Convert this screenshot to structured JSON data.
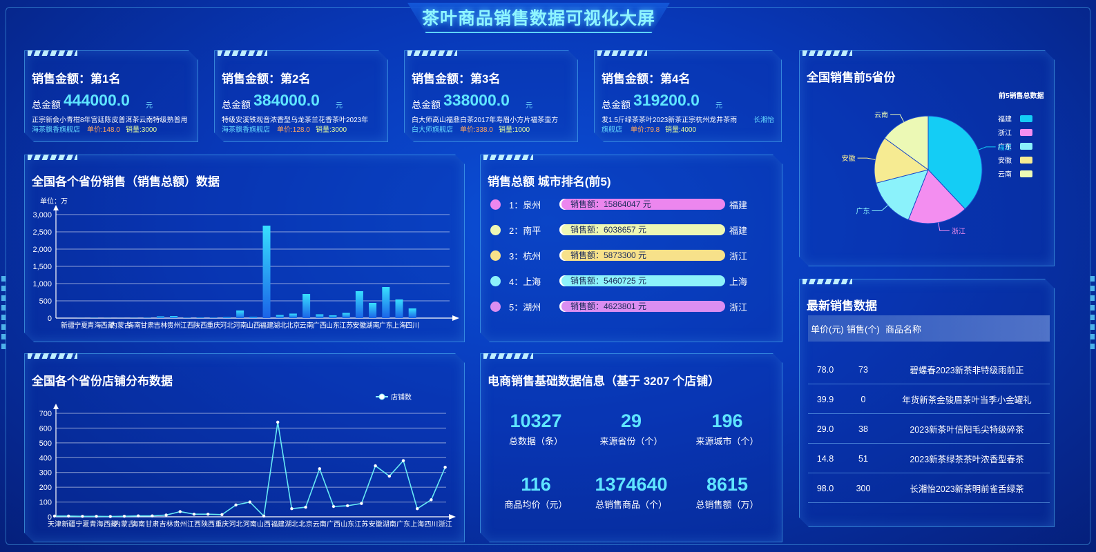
{
  "header": {
    "title": "茶叶商品销售数据可视化大屏"
  },
  "rank_cards": [
    {
      "label": "销售金额：第1名",
      "total_label": "总金额",
      "total_value": "444000.0",
      "unit": "元",
      "name": "正宗新会小青柑8年宫廷陈皮普洱茶云南特级熟普用",
      "shop": "海茶飘香旗舰店",
      "price": "单价:148.0",
      "sales": "销量:3000",
      "extra": ""
    },
    {
      "label": "销售金额：第2名",
      "total_label": "总金额",
      "total_value": "384000.0",
      "unit": "元",
      "name": "特级安溪铁观音浓香型乌龙茶兰花香茶叶2023年",
      "shop": "海茶飘香旗舰店",
      "price": "单价:128.0",
      "sales": "销量:3000",
      "extra": ""
    },
    {
      "label": "销售金额：第3名",
      "total_label": "总金额",
      "total_value": "338000.0",
      "unit": "元",
      "name": "白大师高山福鼎白茶2017年寿眉小方片福茶壶方",
      "shop": "白大师旗舰店",
      "price": "单价:338.0",
      "sales": "销量:1000",
      "extra": ""
    },
    {
      "label": "销售金额：第4名",
      "total_label": "总金额",
      "total_value": "319200.0",
      "unit": "元",
      "name": "发1.5斤绿茶茶叶2023新茶正宗杭州龙井茶雨",
      "shop": "旗舰店",
      "price": "单价:79.8",
      "sales": "销量:4000",
      "extra": "长湘怡"
    }
  ],
  "province_sales": {
    "title": "全国各个省份销售（销售总额）数据",
    "unit_label": "单位：万",
    "chart_data": {
      "type": "bar",
      "categories": [
        "新疆",
        "宁夏",
        "青海",
        "西藏",
        "内蒙古",
        "海南",
        "甘肃",
        "吉林",
        "贵州",
        "江西",
        "陕西",
        "重庆",
        "河北",
        "河南",
        "山西",
        "福建",
        "湖北",
        "北京",
        "云南",
        "广西",
        "山东",
        "江苏",
        "安徽",
        "湖南",
        "广东",
        "上海",
        "四川"
      ],
      "values": [
        0,
        2,
        5,
        3,
        2,
        4,
        8,
        50,
        60,
        10,
        15,
        12,
        30,
        220,
        40,
        2680,
        90,
        130,
        700,
        110,
        80,
        150,
        780,
        440,
        900,
        540,
        280
      ],
      "ylim": [
        0,
        3000
      ],
      "yticks": [
        "0",
        "500",
        "1,000",
        "1,500",
        "2,000",
        "2,500",
        "3,000"
      ],
      "xlabel": "",
      "ylabel": "单位：万"
    }
  },
  "pie": {
    "title": "全国销售前5省份",
    "legend_title": "前5销售总数据",
    "chart_data": {
      "type": "pie",
      "labels": [
        "福建",
        "浙江",
        "广东",
        "安徽",
        "云南"
      ],
      "values": [
        38,
        18,
        15,
        14,
        15
      ],
      "colors": [
        "#14cdf5",
        "#f38ef0",
        "#8bf2fb",
        "#f6eb92",
        "#ecf9b5"
      ]
    }
  },
  "city_rank": {
    "title": "销售总额 城市排名(前5)",
    "rows": [
      {
        "rank": "1：泉州",
        "bar": "销售额：15864047 元",
        "province": "福建",
        "color": "#ec86ee"
      },
      {
        "rank": "2：南平",
        "bar": "销售额：6038657 元",
        "province": "福建",
        "color": "#eef7b4"
      },
      {
        "rank": "3：杭州",
        "bar": "销售额：5873300 元",
        "province": "浙江",
        "color": "#f7e18a"
      },
      {
        "rank": "4：上海",
        "bar": "销售额：5460725 元",
        "province": "上海",
        "color": "#8df2fa"
      },
      {
        "rank": "5：湖州",
        "bar": "销售额：4623801 元",
        "province": "浙江",
        "color": "#db8ef1"
      }
    ]
  },
  "shop_dist": {
    "title": "全国各个省份店铺分布数据",
    "legend": "店铺数",
    "chart_data": {
      "type": "line",
      "categories": [
        "天津",
        "新疆",
        "宁夏",
        "青海",
        "西藏",
        "内蒙古",
        "海南",
        "甘肃",
        "吉林",
        "贵州",
        "江西",
        "陕西",
        "重庆",
        "河北",
        "河南",
        "山西",
        "福建",
        "湖北",
        "北京",
        "云南",
        "广西",
        "山东",
        "江苏",
        "安徽",
        "湖南",
        "广东",
        "上海",
        "四川",
        "浙江"
      ],
      "series": [
        {
          "name": "店铺数",
          "values": [
            5,
            5,
            3,
            3,
            2,
            4,
            6,
            6,
            12,
            35,
            18,
            18,
            15,
            80,
            100,
            5,
            640,
            55,
            65,
            325,
            70,
            75,
            90,
            345,
            275,
            380,
            55,
            115,
            335
          ]
        }
      ],
      "ylim": [
        0,
        700
      ],
      "yticks": [
        "0",
        "100",
        "200",
        "300",
        "400",
        "500",
        "600",
        "700"
      ]
    }
  },
  "stats": {
    "title": "电商销售基础数据信息（基于 3207 个店铺）",
    "items": [
      {
        "value": "10327",
        "label": "总数据（条）"
      },
      {
        "value": "29",
        "label": "来源省份（个）"
      },
      {
        "value": "196",
        "label": "来源城市（个）"
      },
      {
        "value": "116",
        "label": "商品均价（元）"
      },
      {
        "value": "1374640",
        "label": "总销售商品（个）"
      },
      {
        "value": "8615",
        "label": "总销售额（万）"
      }
    ]
  },
  "latest": {
    "title": "最新销售数据",
    "headers": [
      "单价(元)",
      "销售(个)",
      "商品名称"
    ],
    "rows": [
      {
        "price": "78.0",
        "sales": "73",
        "name": "碧螺春2023新茶非特级雨前正"
      },
      {
        "price": "39.9",
        "sales": "0",
        "name": "年货新茶金骏眉茶叶当季小金罐礼"
      },
      {
        "price": "29.0",
        "sales": "38",
        "name": "2023新茶叶信阳毛尖特级碎茶"
      },
      {
        "price": "14.8",
        "sales": "51",
        "name": "2023新茶绿茶茶叶浓香型春茶"
      },
      {
        "price": "98.0",
        "sales": "300",
        "name": "长湘怡2023新茶明前雀舌绿茶"
      }
    ]
  }
}
